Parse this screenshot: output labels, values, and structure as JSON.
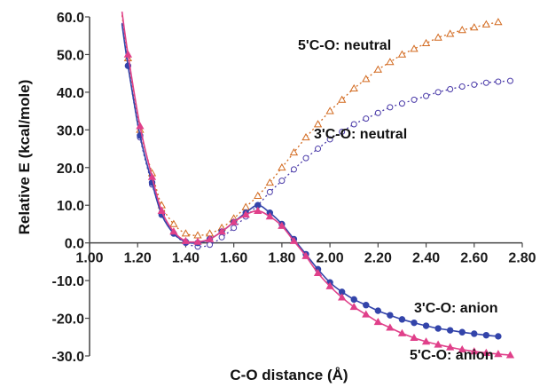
{
  "chart_data": {
    "type": "scatter",
    "title": "",
    "xlabel": "C-O distance (Å)",
    "ylabel": "Relative E (kcal/mole)",
    "xlim": [
      1.0,
      2.8
    ],
    "ylim": [
      -30,
      60
    ],
    "x_ticks": [
      "1.00",
      "1.20",
      "1.40",
      "1.60",
      "1.80",
      "2.00",
      "2.20",
      "2.40",
      "2.60",
      "2.80"
    ],
    "y_ticks": [
      "60.0",
      "50.0",
      "40.0",
      "30.0",
      "20.0",
      "10.0",
      "0.0",
      "-10.0",
      "-20.0",
      "-30.0"
    ],
    "grid": false,
    "series": [
      {
        "name": "5'C-O: neutral",
        "color": "#d2691e",
        "marker": "open-triangle",
        "line_style": "dotted",
        "x": [
          1.16,
          1.21,
          1.26,
          1.3,
          1.35,
          1.4,
          1.45,
          1.5,
          1.55,
          1.6,
          1.65,
          1.7,
          1.75,
          1.8,
          1.85,
          1.9,
          1.95,
          2.0,
          2.05,
          2.1,
          2.15,
          2.2,
          2.25,
          2.3,
          2.35,
          2.4,
          2.45,
          2.5,
          2.55,
          2.6,
          2.65,
          2.7
        ],
        "y": [
          49.0,
          30.0,
          18.5,
          10.0,
          5.0,
          2.5,
          2.0,
          2.5,
          4.0,
          6.5,
          9.5,
          12.5,
          16.0,
          20.0,
          24.0,
          28.0,
          31.5,
          35.0,
          38.0,
          41.0,
          43.5,
          46.0,
          48.0,
          50.0,
          51.5,
          53.0,
          54.5,
          55.5,
          56.5,
          57.2,
          58.0,
          58.6
        ]
      },
      {
        "name": "3'C-O: neutral",
        "color": "#4a3aa8",
        "marker": "open-circle",
        "line_style": "dotted",
        "x": [
          1.16,
          1.21,
          1.26,
          1.3,
          1.35,
          1.4,
          1.45,
          1.5,
          1.55,
          1.6,
          1.65,
          1.7,
          1.75,
          1.8,
          1.85,
          1.9,
          1.95,
          2.0,
          2.05,
          2.1,
          2.15,
          2.2,
          2.25,
          2.3,
          2.35,
          2.4,
          2.45,
          2.5,
          2.55,
          2.6,
          2.65,
          2.7,
          2.75
        ],
        "y": [
          47.0,
          28.0,
          15.5,
          8.0,
          2.5,
          0.0,
          -1.0,
          -0.5,
          1.5,
          4.0,
          7.0,
          10.0,
          13.5,
          16.5,
          19.5,
          22.5,
          25.0,
          27.5,
          29.5,
          31.5,
          33.0,
          34.5,
          36.0,
          37.0,
          38.0,
          39.0,
          40.0,
          40.8,
          41.5,
          42.0,
          42.5,
          42.8,
          43.0
        ]
      },
      {
        "name": "3'C-O: anion",
        "color": "#3344aa",
        "marker": "filled-circle",
        "line_style": "solid",
        "x": [
          1.16,
          1.21,
          1.26,
          1.3,
          1.35,
          1.4,
          1.45,
          1.5,
          1.55,
          1.6,
          1.65,
          1.7,
          1.75,
          1.8,
          1.85,
          1.9,
          1.95,
          2.0,
          2.05,
          2.1,
          2.15,
          2.2,
          2.25,
          2.3,
          2.35,
          2.4,
          2.45,
          2.5,
          2.55,
          2.6,
          2.65,
          2.7
        ],
        "y": [
          47.0,
          28.5,
          16.0,
          7.5,
          2.5,
          0.3,
          0.0,
          1.0,
          3.0,
          5.5,
          8.0,
          10.0,
          8.0,
          5.0,
          1.0,
          -3.0,
          -7.0,
          -10.5,
          -13.0,
          -15.0,
          -16.5,
          -18.0,
          -19.2,
          -20.3,
          -21.2,
          -22.0,
          -22.7,
          -23.2,
          -23.7,
          -24.1,
          -24.5,
          -24.8
        ]
      },
      {
        "name": "5'C-O: anion",
        "color": "#e0408a",
        "marker": "filled-triangle",
        "line_style": "solid",
        "x": [
          1.16,
          1.21,
          1.26,
          1.3,
          1.35,
          1.4,
          1.45,
          1.5,
          1.55,
          1.6,
          1.65,
          1.7,
          1.75,
          1.8,
          1.85,
          1.9,
          1.95,
          2.0,
          2.05,
          2.1,
          2.15,
          2.2,
          2.25,
          2.3,
          2.35,
          2.4,
          2.45,
          2.5,
          2.55,
          2.6,
          2.65,
          2.7,
          2.75
        ],
        "y": [
          50.0,
          31.0,
          17.5,
          8.5,
          3.0,
          0.5,
          0.3,
          1.0,
          3.0,
          5.5,
          7.5,
          8.5,
          7.0,
          4.5,
          0.5,
          -3.5,
          -8.0,
          -11.5,
          -14.5,
          -17.0,
          -19.0,
          -21.0,
          -22.5,
          -24.0,
          -25.2,
          -26.2,
          -27.0,
          -27.7,
          -28.3,
          -28.8,
          -29.2,
          -29.5,
          -29.8
        ]
      }
    ]
  }
}
